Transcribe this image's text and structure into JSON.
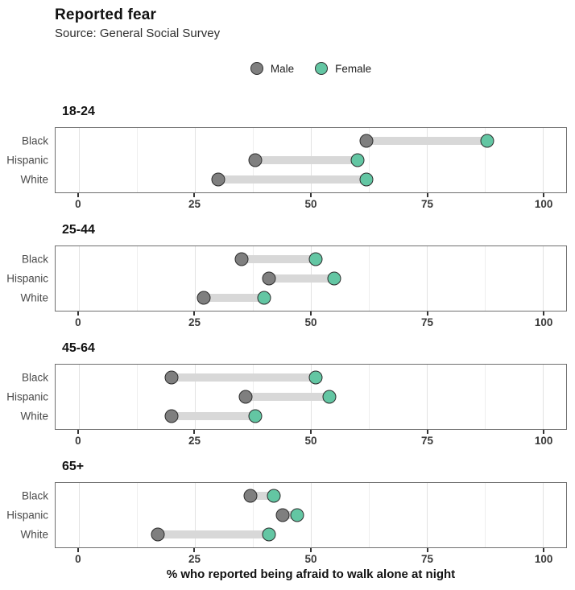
{
  "header": {
    "title": "Reported fear",
    "subtitle": "Source: General Social Survey"
  },
  "colors": {
    "male": "#7f7f7f",
    "female": "#63c6a3",
    "dot_border": "#2c2c2c",
    "bar": "#d8d8d8",
    "panel_border": "#6f6f6f",
    "grid_major": "#e2e2e2",
    "grid_minor": "#eeeeee"
  },
  "chart_data": {
    "type": "dumbbell",
    "title": "Reported fear",
    "subtitle": "Source: General Social Survey",
    "xlabel": "% who reported being afraid to walk alone at night",
    "xlim": [
      -5,
      105
    ],
    "xticks": [
      0,
      25,
      50,
      75,
      100
    ],
    "minor_ticks": [
      12.5,
      37.5,
      62.5,
      87.5
    ],
    "grid": true,
    "legend_position": "top-center",
    "series_names": [
      "Male",
      "Female"
    ],
    "categories": [
      "Black",
      "Hispanic",
      "White"
    ],
    "facets": [
      {
        "label": "18-24",
        "rows": [
          {
            "category": "Black",
            "male": 62,
            "female": 88
          },
          {
            "category": "Hispanic",
            "male": 38,
            "female": 60
          },
          {
            "category": "White",
            "male": 30,
            "female": 62
          }
        ]
      },
      {
        "label": "25-44",
        "rows": [
          {
            "category": "Black",
            "male": 35,
            "female": 51
          },
          {
            "category": "Hispanic",
            "male": 41,
            "female": 55
          },
          {
            "category": "White",
            "male": 27,
            "female": 40
          }
        ]
      },
      {
        "label": "45-64",
        "rows": [
          {
            "category": "Black",
            "male": 20,
            "female": 51
          },
          {
            "category": "Hispanic",
            "male": 36,
            "female": 54
          },
          {
            "category": "White",
            "male": 20,
            "female": 38
          }
        ]
      },
      {
        "label": "65+",
        "rows": [
          {
            "category": "Black",
            "male": 37,
            "female": 42
          },
          {
            "category": "Hispanic",
            "male": 44,
            "female": 47
          },
          {
            "category": "White",
            "male": 17,
            "female": 41
          }
        ]
      }
    ]
  }
}
